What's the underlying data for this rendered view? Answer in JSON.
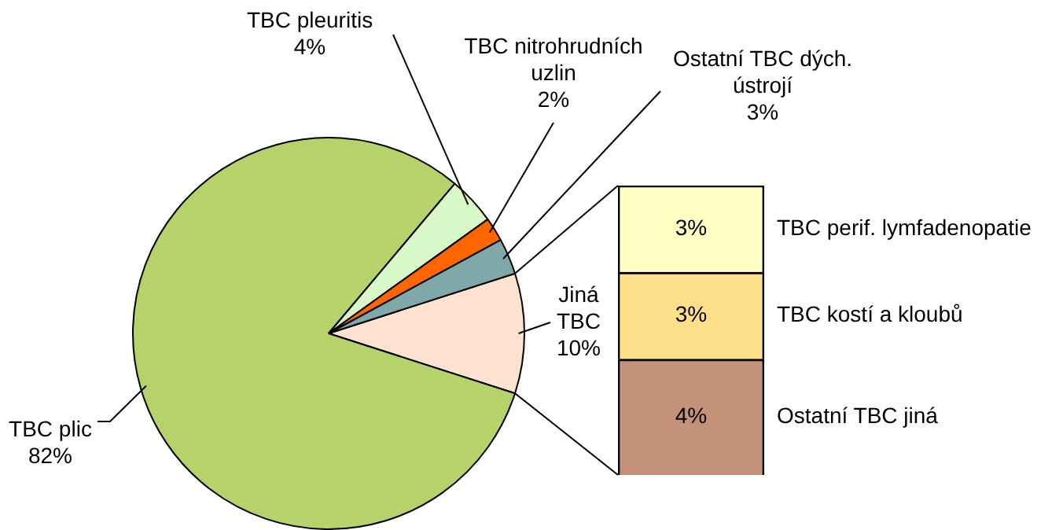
{
  "chart_data": [
    {
      "type": "pie",
      "categories": [
        "Jiná TBC",
        "TBC plic",
        "TBC pleuritis",
        "TBC nitrohrudních uzlin",
        "Ostatní TBC dých. ústrojí"
      ],
      "values": [
        10,
        82,
        4,
        2,
        3
      ],
      "value_labels": [
        "10%",
        "82%",
        "4%",
        "2%",
        "3%"
      ],
      "colors": [
        "#fde3cf",
        "#b5d36a",
        "#d8f8c8",
        "#ff6600",
        "#7fa8a8"
      ],
      "legend": false
    },
    {
      "type": "bar",
      "stacked": true,
      "categories": [
        null
      ],
      "legend": false,
      "series": [
        {
          "name": "Ostatní TBC jiná",
          "color": "#c4917a",
          "values": [
            4
          ],
          "value_labels": [
            "4%"
          ]
        },
        {
          "name": "TBC kostí a kloubů",
          "color": "#ffe08a",
          "values": [
            3
          ],
          "value_labels": [
            "3%"
          ]
        },
        {
          "name": "TBC perif. lymfadenopatie",
          "color": "#ffffc4",
          "values": [
            3
          ],
          "value_labels": [
            "3%"
          ]
        }
      ]
    }
  ]
}
